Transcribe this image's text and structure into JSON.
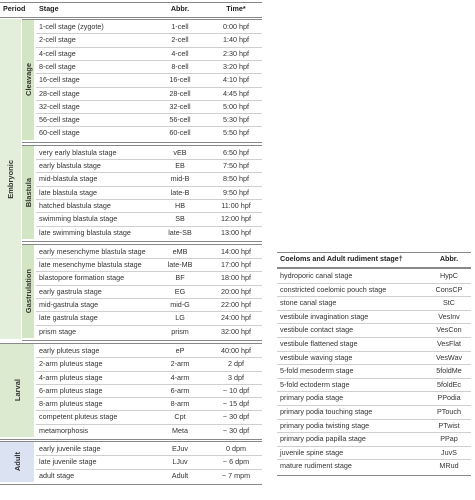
{
  "main_table": {
    "headers": [
      "Period",
      "Stage",
      "Abbr.",
      "Time*"
    ],
    "periods": [
      {
        "label": "Embryonic",
        "subperiods": [
          {
            "label": "Cleavage",
            "rows": [
              [
                "1-cell stage (zygote)",
                "1-cell",
                "0:00 hpf"
              ],
              [
                "2-cell stage",
                "2-cell",
                "1:40 hpf"
              ],
              [
                "4-cell stage",
                "4-cell",
                "2:30 hpf"
              ],
              [
                "8-cell stage",
                "8-cell",
                "3:20 hpf"
              ],
              [
                "16-cell stage",
                "16-cell",
                "4:10 hpf"
              ],
              [
                "28-cell stage",
                "28-cell",
                "4:45 hpf"
              ],
              [
                "32-cell stage",
                "32-cell",
                "5:00 hpf"
              ],
              [
                "56-cell stage",
                "56-cell",
                "5:30 hpf"
              ],
              [
                "60-cell stage",
                "60-cell",
                "5:50 hpf"
              ]
            ]
          },
          {
            "label": "Blastula",
            "rows": [
              [
                "very early blastula stage",
                "vEB",
                "6:50 hpf"
              ],
              [
                "early blastula stage",
                "EB",
                "7:50 hpf"
              ],
              [
                "mid-blastula stage",
                "mid-B",
                "8:50 hpf"
              ],
              [
                "late blastula stage",
                "late-B",
                "9:50 hpf"
              ],
              [
                "hatched blastula stage",
                "HB",
                "11:00 hpf"
              ],
              [
                "swimming blastula stage",
                "SB",
                "12:00 hpf"
              ],
              [
                "late swimming blastula stage",
                "late-SB",
                "13:00 hpf"
              ]
            ]
          },
          {
            "label": "Gastrulation",
            "rows": [
              [
                "early mesenchyme blastula stage",
                "eMB",
                "14:00 hpf"
              ],
              [
                "late mesenchyme blastula stage",
                "late-MB",
                "17:00 hpf"
              ],
              [
                "blastopore formation stage",
                "BF",
                "18:00 hpf"
              ],
              [
                "early gastrula stage",
                "EG",
                "20:00 hpf"
              ],
              [
                "mid-gastrula stage",
                "mid-G",
                "22:00 hpf"
              ],
              [
                "late gastrula stage",
                "LG",
                "24:00 hpf"
              ],
              [
                "prism stage",
                "prism",
                "32:00 hpf"
              ]
            ]
          }
        ]
      },
      {
        "label": "Larval",
        "rows": [
          [
            "early pluteus stage",
            "eP",
            "40:00 hpf"
          ],
          [
            "2-arm pluteus stage",
            "2-arm",
            "2 dpf"
          ],
          [
            "4-arm pluteus stage",
            "4-arm",
            "3 dpf"
          ],
          [
            "6-arm pluteus stage",
            "6-arm",
            "~ 10 dpf"
          ],
          [
            "8-arm pluteus stage",
            "8-arm",
            "~ 15 dpf"
          ],
          [
            "competent pluteus stage",
            "Cpt",
            "~ 30 dpf"
          ],
          [
            "metamorphosis",
            "Meta",
            "~ 30 dpf"
          ]
        ]
      },
      {
        "label": "Adult",
        "rows": [
          [
            "early juvenile stage",
            "EJuv",
            "0 dpm"
          ],
          [
            "late juvenile stage",
            "LJuv",
            "~ 6 dpm"
          ],
          [
            "adult stage",
            "Adult",
            "~ 7 mpm"
          ]
        ]
      }
    ]
  },
  "side_table": {
    "headers": [
      "Coeloms and Adult rudiment stage†",
      "Abbr."
    ],
    "rows": [
      [
        "hydroporic canal stage",
        "HypC"
      ],
      [
        "constricted coelomic pouch stage",
        "ConsCP"
      ],
      [
        "stone canal stage",
        "StC"
      ],
      [
        "vestibule invagination stage",
        "VesInv"
      ],
      [
        "vestibule contact stage",
        "VesCon"
      ],
      [
        "vestibule flattened stage",
        "VesFlat"
      ],
      [
        "vestibule waving stage",
        "VesWav"
      ],
      [
        "5-fold mesoderm stage",
        "5foldMe"
      ],
      [
        "5-fold ectoderm stage",
        "5foldEc"
      ],
      [
        "primary podia stage",
        "PPodia"
      ],
      [
        "primary podia touching stage",
        "PTouch"
      ],
      [
        "primary podia twisting stage",
        "PTwist"
      ],
      [
        "primary podia papilla stage",
        "PPap"
      ],
      [
        "juvenile spine stage",
        "JuvS"
      ],
      [
        "mature rudiment stage",
        "MRud"
      ]
    ]
  }
}
